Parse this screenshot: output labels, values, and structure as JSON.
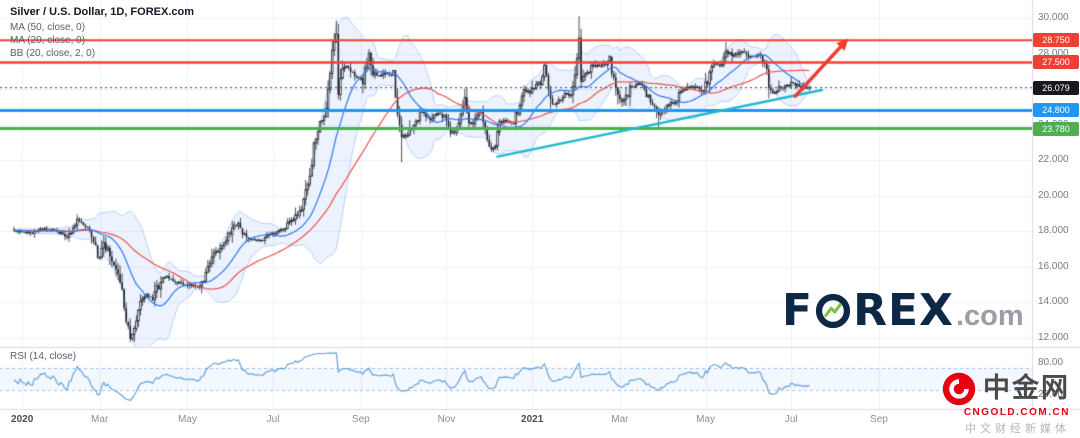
{
  "header": {
    "title": "Silver / U.S. Dollar, 1D, FOREX.com",
    "legend": [
      "MA (50, close, 0)",
      "MA (20, close, 0)",
      "BB (20, close, 2, 0)"
    ]
  },
  "rsi_label": "RSI (14, close)",
  "watermark": {
    "pre": "F",
    "post": "REX",
    "suffix": ".com"
  },
  "cngold": {
    "name": "中金网",
    "domain": "CNGOLD.COM.CN",
    "tagline": "中文财经新媒体"
  },
  "colors": {
    "grid": "#edf1f7",
    "candle": "#23262f",
    "candle_up_fill": "#ffffff",
    "ma_fast": "#3179f5",
    "ma_slow": "#ef5350",
    "bb_edge": "rgba(49,121,245,0.30)",
    "bb_fill": "rgba(49,121,245,0.09)",
    "rsi_line": "#5b9ed6",
    "rsi_band_line": "rgba(49,121,245,0.45)",
    "rsi_band_fill": "rgba(49,121,245,0.06)",
    "trendline": "#22b8cf",
    "arrow": "#f03b30",
    "last_line": "#40434c",
    "last_badge_bg": "#17191f",
    "separator": "#d8dce3",
    "axis_text": "#787b86"
  },
  "chart_data": {
    "type": "candlestick",
    "title": "Silver / U.S. Dollar, 1D, FOREX.com",
    "symbol": "Silver / U.S. Dollar",
    "interval": "1D",
    "source": "FOREX.com",
    "price_domain": {
      "top": 31.01,
      "bottom": 11.49
    },
    "price_axis_ticks": [
      {
        "v": 30,
        "label": "30.000"
      },
      {
        "v": 28,
        "label": "28.000"
      },
      {
        "v": 26,
        "label": "26.000"
      },
      {
        "v": 24,
        "label": "24.000"
      },
      {
        "v": 22,
        "label": "22.000"
      },
      {
        "v": 20,
        "label": "20.000"
      },
      {
        "v": 18,
        "label": "18.000"
      },
      {
        "v": 16,
        "label": "16.000"
      },
      {
        "v": 14,
        "label": "14.000"
      },
      {
        "v": 12,
        "label": "12.000"
      }
    ],
    "rsi_axis_ticks": [
      {
        "v": 80,
        "label": "80.00"
      },
      {
        "v": 20,
        "label": "20.00"
      }
    ],
    "time_axis_ticks": [
      {
        "label": "2020",
        "day": 4,
        "year": true
      },
      {
        "label": "Mar",
        "day": 42,
        "year": false
      },
      {
        "label": "May",
        "day": 85,
        "year": false
      },
      {
        "label": "Jul",
        "day": 127,
        "year": false
      },
      {
        "label": "Sep",
        "day": 170,
        "year": false
      },
      {
        "label": "Nov",
        "day": 212,
        "year": false
      },
      {
        "label": "2021",
        "day": 254,
        "year": true
      },
      {
        "label": "Mar",
        "day": 297,
        "year": false
      },
      {
        "label": "May",
        "day": 339,
        "year": false
      },
      {
        "label": "Jul",
        "day": 381,
        "year": false
      },
      {
        "label": "Sep",
        "day": 424,
        "year": false
      }
    ],
    "levels": [
      {
        "value": 28.75,
        "label": "28.750",
        "color": "#ef4034",
        "width": 2
      },
      {
        "value": 27.5,
        "label": "27.500",
        "color": "#ef4034",
        "width": 2.5
      },
      {
        "value": 24.8,
        "label": "24.800",
        "color": "#2196f3",
        "width": 3
      },
      {
        "value": 23.78,
        "label": "23.780",
        "color": "#4caf50",
        "width": 3
      }
    ],
    "last_price": {
      "value": 26.079,
      "label": "26.079"
    },
    "trendline": {
      "from": {
        "day": 237,
        "price": 22.2
      },
      "to": {
        "day": 396,
        "price": 25.95
      },
      "color": "#22b8cf",
      "width": 2.5
    },
    "arrow": {
      "from": {
        "day": 383,
        "price": 25.6
      },
      "to": {
        "day": 409,
        "price": 28.85
      },
      "color": "#f03b30",
      "width": 3.5
    },
    "wicks": [
      {
        "day": 57,
        "price": 11.77,
        "side": "low"
      },
      {
        "day": 158,
        "price": 29.86,
        "side": "high"
      },
      {
        "day": 190,
        "price": 21.88,
        "side": "low"
      },
      {
        "day": 277,
        "price": 30.1,
        "side": "high"
      },
      {
        "day": 316,
        "price": 23.74,
        "side": "low"
      }
    ],
    "series_anchors": {
      "days": [
        0,
        8,
        15,
        21,
        26,
        31,
        38,
        41,
        44,
        48,
        51,
        53,
        55,
        57,
        59,
        62,
        65,
        68,
        72,
        75,
        79,
        83,
        87,
        90,
        94,
        98,
        102,
        106,
        110,
        113,
        117,
        121,
        125,
        129,
        133,
        137,
        141,
        145,
        147,
        150,
        152,
        154,
        156,
        158,
        159,
        161,
        164,
        167,
        171,
        174,
        176,
        179,
        183,
        186,
        188,
        190,
        193,
        196,
        200,
        204,
        208,
        211,
        214,
        217,
        220,
        221,
        223,
        226,
        229,
        232,
        234,
        236,
        238,
        241,
        244,
        247,
        250,
        253,
        256,
        258,
        260,
        262,
        264,
        267,
        270,
        273,
        275,
        277,
        278,
        281,
        284,
        287,
        290,
        292,
        294,
        297,
        299,
        302,
        305,
        308,
        310,
        313,
        316,
        319,
        322,
        325,
        328,
        331,
        334,
        337,
        340,
        343,
        346,
        349,
        352,
        355,
        358,
        360,
        363,
        366,
        369,
        370,
        372,
        375,
        378,
        381,
        384,
        387,
        390
      ],
      "closes": [
        18.05,
        17.9,
        18.2,
        18.0,
        17.7,
        18.7,
        17.9,
        16.5,
        17.3,
        16.5,
        15.7,
        14.7,
        12.8,
        12.05,
        12.3,
        14.1,
        14.4,
        14.2,
        15.2,
        15.5,
        15.2,
        15.0,
        14.95,
        14.9,
        15.5,
        16.6,
        17.3,
        17.9,
        18.5,
        17.7,
        17.5,
        17.5,
        17.8,
        17.9,
        18.2,
        18.7,
        19.3,
        21.0,
        22.8,
        24.2,
        24.4,
        25.9,
        28.3,
        29.1,
        25.9,
        27.3,
        27.2,
        26.7,
        26.5,
        28.1,
        26.9,
        26.8,
        26.9,
        26.8,
        24.5,
        23.2,
        23.5,
        23.9,
        24.8,
        24.3,
        24.6,
        24.4,
        23.5,
        23.7,
        25.0,
        25.5,
        23.9,
        24.3,
        24.7,
        23.3,
        22.7,
        22.6,
        24.1,
        24.2,
        24.0,
        24.8,
        25.9,
        25.8,
        26.3,
        26.4,
        27.3,
        26.2,
        24.9,
        25.3,
        25.8,
        25.5,
        26.7,
        28.9,
        26.6,
        26.9,
        27.3,
        27.3,
        27.4,
        27.7,
        26.5,
        25.4,
        25.3,
        26.0,
        26.2,
        26.3,
        25.7,
        25.1,
        24.5,
        24.9,
        25.2,
        25.4,
        26.0,
        26.1,
        26.1,
        25.9,
        26.5,
        27.4,
        27.3,
        28.2,
        27.9,
        28.0,
        28.1,
        27.8,
        27.9,
        28.0,
        27.1,
        26.0,
        25.8,
        26.1,
        26.1,
        26.4,
        26.2,
        26.1,
        26.079
      ]
    },
    "indicators": {
      "ma_fast": {
        "period": 20
      },
      "ma_slow": {
        "period": 50
      },
      "bollinger": {
        "period": 20,
        "stddev": 2
      },
      "rsi": {
        "period": 14,
        "bands": [
          70,
          30
        ]
      }
    }
  }
}
